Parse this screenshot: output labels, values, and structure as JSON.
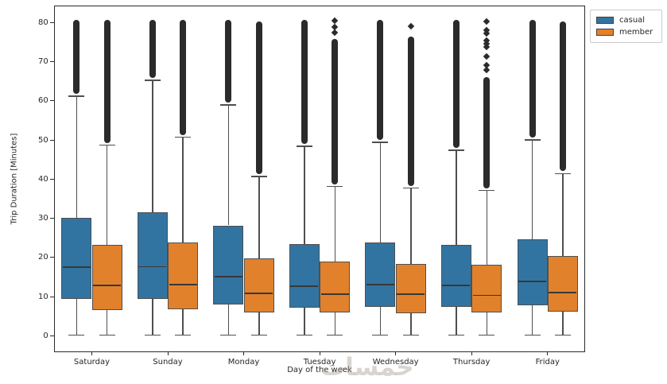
{
  "figure": {
    "watermark": "خمسات"
  },
  "legend": {
    "items": [
      {
        "label": "casual",
        "color": "#3274a1"
      },
      {
        "label": "member",
        "color": "#e1812c"
      }
    ]
  },
  "chart_data": {
    "type": "boxplot",
    "title": "",
    "xlabel": "Day of the week",
    "ylabel": "Trip Duration [Minutes]",
    "ylim": [
      -4.1,
      84.3
    ],
    "yticks": [
      0,
      10,
      20,
      30,
      40,
      50,
      60,
      70,
      80
    ],
    "grid": false,
    "legend_position": "upper right, outside axes",
    "categories": [
      "Saturday",
      "Sunday",
      "Monday",
      "Tuesday",
      "Wednesday",
      "Thursday",
      "Friday"
    ],
    "series": [
      {
        "name": "casual",
        "color": "#3274a1",
        "boxes": [
          {
            "whislo": 0.2,
            "q1": 9.4,
            "med": 17.5,
            "q3": 30.1,
            "whishi": 61.2,
            "fliers": [
              61.8,
              80.6
            ]
          },
          {
            "whislo": 0.2,
            "q1": 9.4,
            "med": 17.6,
            "q3": 31.6,
            "whishi": 65.2,
            "fliers": [
              65.8,
              80.6
            ]
          },
          {
            "whislo": 0.2,
            "q1": 8.0,
            "med": 15.1,
            "q3": 28.2,
            "whishi": 58.9,
            "fliers": [
              59.5,
              80.6
            ]
          },
          {
            "whislo": 0.2,
            "q1": 7.2,
            "med": 12.7,
            "q3": 23.5,
            "whishi": 48.4,
            "fliers": [
              49.0,
              80.6
            ]
          },
          {
            "whislo": 0.2,
            "q1": 7.4,
            "med": 13.1,
            "q3": 23.9,
            "whishi": 49.4,
            "fliers": [
              50.0,
              80.6
            ]
          },
          {
            "whislo": 0.2,
            "q1": 7.4,
            "med": 12.9,
            "q3": 23.3,
            "whishi": 47.4,
            "fliers": [
              48.0,
              80.6
            ]
          },
          {
            "whislo": 0.2,
            "q1": 7.8,
            "med": 13.9,
            "q3": 24.7,
            "whishi": 50.0,
            "fliers": [
              50.6,
              80.6
            ]
          }
        ]
      },
      {
        "name": "member",
        "color": "#e1812c",
        "boxes": [
          {
            "whislo": 0.2,
            "q1": 6.6,
            "med": 12.9,
            "q3": 23.3,
            "whishi": 48.7,
            "fliers": [
              49.3,
              80.6
            ]
          },
          {
            "whislo": 0.2,
            "q1": 6.7,
            "med": 13.1,
            "q3": 23.9,
            "whishi": 50.7,
            "fliers": [
              51.3,
              80.6
            ]
          },
          {
            "whislo": 0.2,
            "q1": 6.0,
            "med": 10.9,
            "q3": 19.8,
            "whishi": 40.7,
            "fliers": [
              41.3,
              80.3
            ]
          },
          {
            "whislo": 0.2,
            "q1": 5.9,
            "med": 10.6,
            "q3": 18.9,
            "whishi": 38.1,
            "fliers": [
              38.7,
              75.8
            ],
            "diamonds": [
              77.4,
              78.9,
              80.4
            ]
          },
          {
            "whislo": 0.2,
            "q1": 5.8,
            "med": 10.6,
            "q3": 18.4,
            "whishi": 37.7,
            "fliers": [
              38.3,
              76.3
            ],
            "diamonds": [
              79.0
            ]
          },
          {
            "whislo": 0.2,
            "q1": 5.9,
            "med": 10.3,
            "q3": 18.2,
            "whishi": 37.1,
            "fliers": [
              37.7,
              66.0
            ],
            "diamonds": [
              67.8,
              69.0,
              71.4,
              73.8,
              74.6,
              75.4,
              77.2,
              78.0,
              80.2
            ]
          },
          {
            "whislo": 0.2,
            "q1": 6.1,
            "med": 11.1,
            "q3": 20.4,
            "whishi": 41.4,
            "fliers": [
              42.0,
              80.3
            ]
          }
        ]
      }
    ]
  }
}
